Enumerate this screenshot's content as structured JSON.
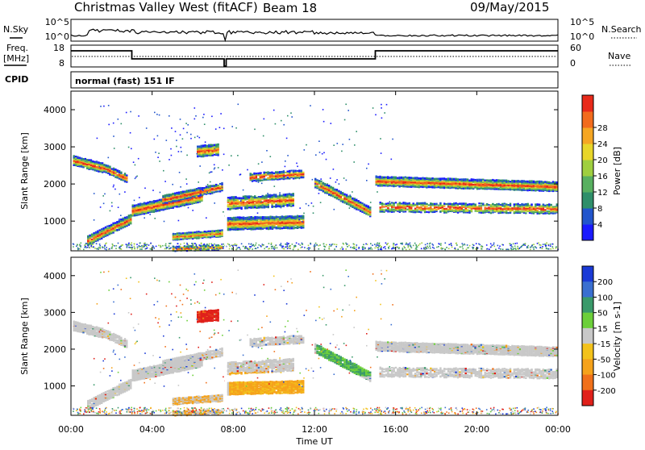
{
  "header": {
    "title": "Christmas Valley West (fitACF)",
    "beam": "Beam 18",
    "date": "09/May/2015"
  },
  "status_panels": {
    "nsky_label": "N.Sky",
    "nsearch_label": "N.Search",
    "freq_label_line1": "Freq.",
    "freq_label_line2": "[MHz]",
    "nave_label": "Nave",
    "cpid_label": "CPID",
    "cpid_value": "normal (fast) 151 IF",
    "noise_ticks_left": [
      "10^5",
      "10^0"
    ],
    "noise_ticks_right": [
      "10^5",
      "10^0"
    ],
    "freq_ticks": [
      "18",
      "8"
    ],
    "nave_ticks": [
      "60",
      "0"
    ]
  },
  "chart_data": [
    {
      "type": "heatmap",
      "name": "power",
      "ylabel": "Slant Range [km]",
      "ylim": [
        200,
        4500
      ],
      "y_ticks": [
        "1000",
        "2000",
        "3000",
        "4000"
      ],
      "colorbar": {
        "label": "Power [dB]",
        "ticks": [
          "4",
          "8",
          "12",
          "16",
          "20",
          "24",
          "28"
        ],
        "colors": [
          "#1a1aff",
          "#2255cc",
          "#2f8f6a",
          "#58b060",
          "#9fcf3f",
          "#e8d62a",
          "#f5a623",
          "#f26b1d",
          "#e82a1a"
        ]
      },
      "xlim_hours": [
        0,
        24
      ]
    },
    {
      "type": "heatmap",
      "name": "velocity",
      "ylabel": "Slant Range [km]",
      "ylim": [
        200,
        4500
      ],
      "y_ticks": [
        "1000",
        "2000",
        "3000",
        "4000"
      ],
      "colorbar": {
        "label": "Velocity [m s-1]",
        "ticks": [
          "200",
          "100",
          "50",
          "15",
          "-15",
          "-50",
          "-100",
          "-200"
        ],
        "colors": [
          "#1a3ad6",
          "#3a6fd0",
          "#3a9a6a",
          "#6ccf3a",
          "#c8c8c8",
          "#f3c21b",
          "#f5a21b",
          "#f0701a",
          "#e0201a"
        ]
      },
      "xlim_hours": [
        0,
        24
      ]
    }
  ],
  "time_axis": {
    "xlabel": "Time UT",
    "ticks": [
      "00:00",
      "04:00",
      "08:00",
      "12:00",
      "16:00",
      "20:00",
      "00:00"
    ]
  }
}
